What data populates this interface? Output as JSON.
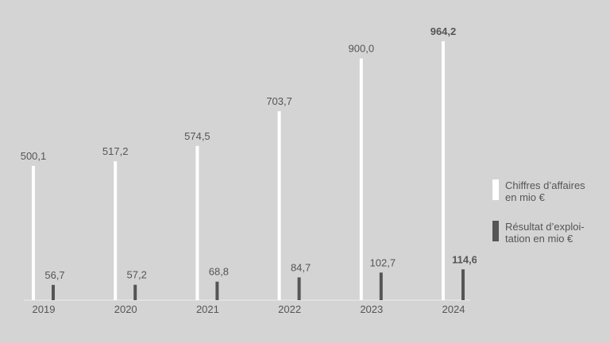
{
  "chart_data": {
    "type": "bar",
    "categories": [
      "2019",
      "2020",
      "2021",
      "2022",
      "2023",
      "2024"
    ],
    "series": [
      {
        "name": "Chiffres d’affaires en mio €",
        "color": "#ffffff",
        "values": [
          500.1,
          517.2,
          574.5,
          703.7,
          900.0,
          964.2
        ],
        "value_labels": [
          "500,1",
          "517,2",
          "574,5",
          "703,7",
          "900,0",
          "964,2"
        ]
      },
      {
        "name": "Résultat d’exploi­tation en mio €",
        "color": "#555555",
        "values": [
          56.7,
          57.2,
          68.8,
          84.7,
          102.7,
          114.6
        ],
        "value_labels": [
          "56,7",
          "57,2",
          "68,8",
          "84,7",
          "102,7",
          "114,6"
        ]
      }
    ],
    "highlight_index": 5,
    "legend": "right"
  }
}
